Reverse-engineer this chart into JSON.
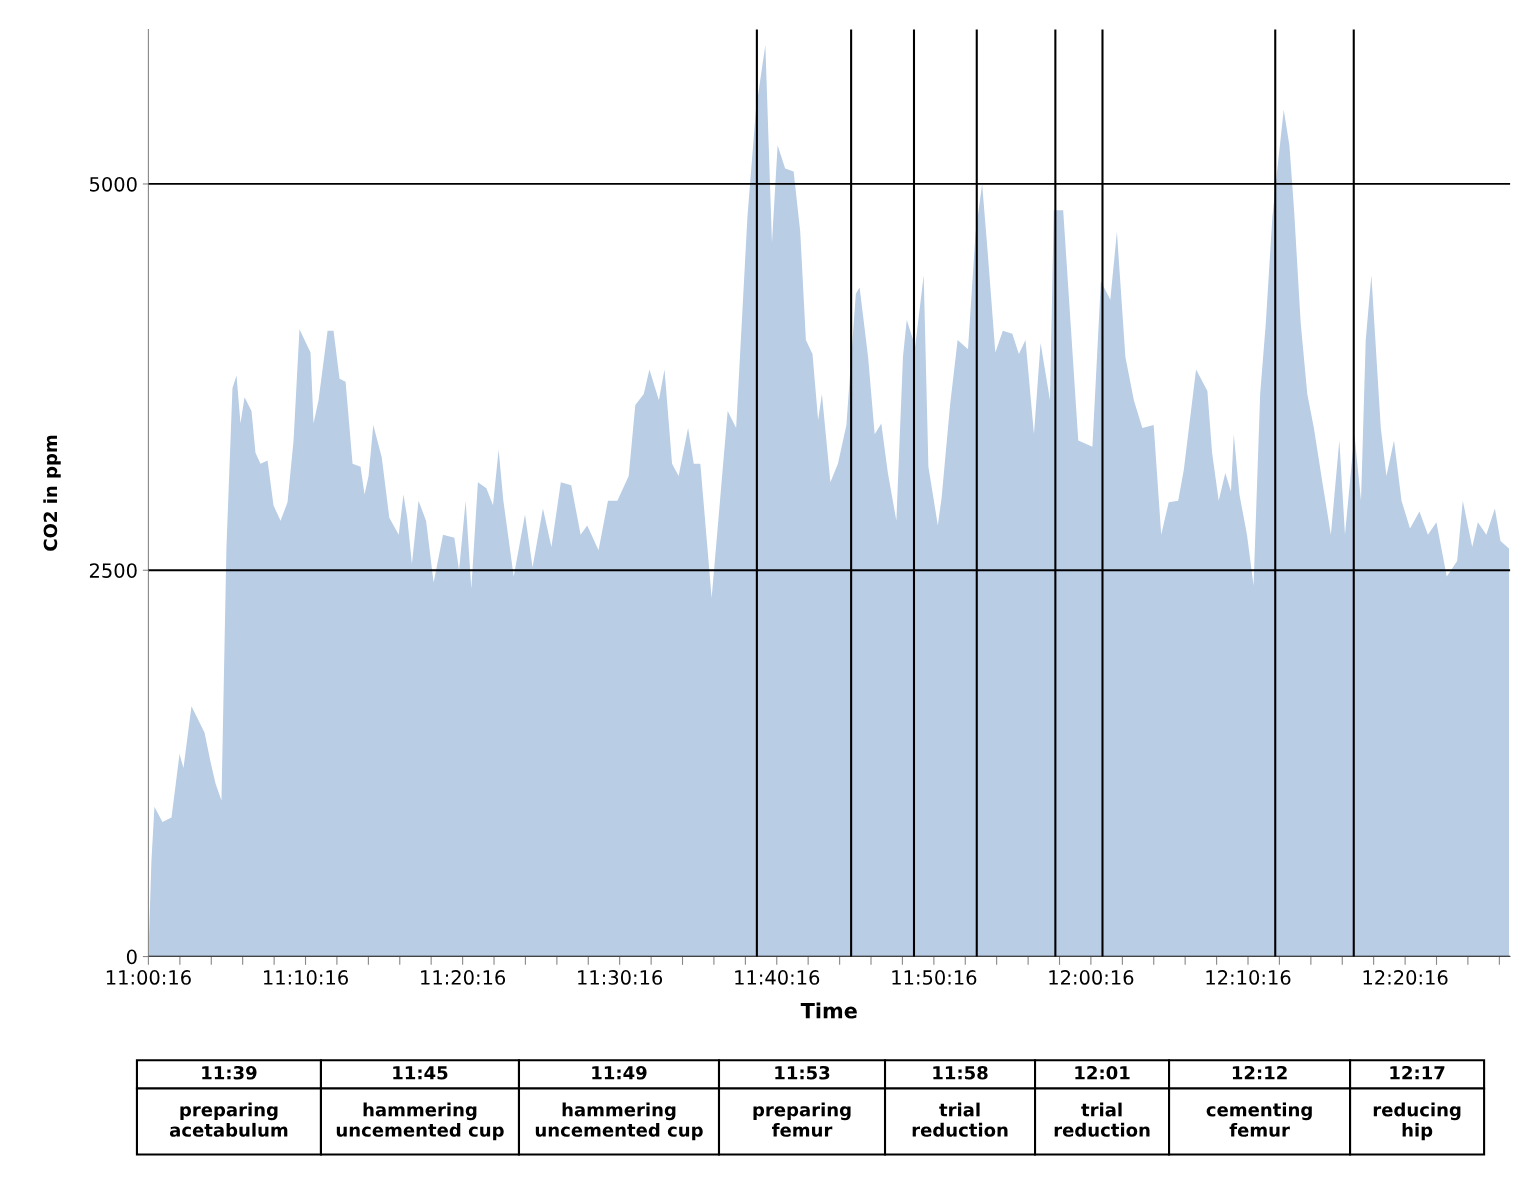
{
  "chart_data": {
    "type": "area",
    "xlabel": "Time",
    "ylabel": "CO2 in ppm",
    "x": [
      11.0044,
      11.0076,
      11.0108,
      11.0193,
      11.0289,
      11.0374,
      11.0416,
      11.0501,
      11.0639,
      11.0703,
      11.0756,
      11.0819,
      11.0872,
      11.0936,
      11.0979,
      11.1021,
      11.1064,
      11.1138,
      11.118,
      11.1233,
      11.1308,
      11.1371,
      11.1446,
      11.152,
      11.1584,
      11.1647,
      11.1764,
      11.1796,
      11.1849,
      11.1945,
      11.2008,
      11.2072,
      11.2136,
      11.221,
      11.2295,
      11.2337,
      11.238,
      11.243,
      11.252,
      11.26,
      11.27,
      11.275,
      11.279,
      11.284,
      11.291,
      11.299,
      11.307,
      11.317,
      11.329,
      11.334,
      11.341,
      11.347,
      11.354,
      11.363,
      11.37,
      11.376,
      11.381,
      11.392,
      11.404,
      11.412,
      11.423,
      11.432,
      11.442,
      11.453,
      11.463,
      11.47,
      11.482,
      11.492,
      11.502,
      11.514,
      11.521,
      11.53,
      11.536,
      11.546,
      11.552,
      11.56,
      11.567,
      11.577,
      11.583,
      11.59,
      11.602,
      11.612,
      11.619,
      11.628,
      11.633,
      11.64,
      11.649,
      11.659,
      11.666,
      11.672,
      11.68,
      11.689,
      11.696,
      11.702,
      11.709,
      11.715,
      11.719,
      11.728,
      11.736,
      11.745,
      11.755,
      11.759,
      11.768,
      11.775,
      11.782,
      11.789,
      11.798,
      11.805,
      11.809,
      11.818,
      11.827,
      11.832,
      11.842,
      11.846,
      11.855,
      11.863,
      11.874,
      11.882,
      11.889,
      11.895,
      11.903,
      11.911,
      11.921,
      11.928,
      11.935,
      11.944,
      11.951,
      11.961,
      11.965,
      11.975,
      11.991,
      12.006,
      12.015,
      12.025,
      12.032,
      12.041,
      12.05,
      12.059,
      12.071,
      12.079,
      12.087,
      12.097,
      12.103,
      12.112,
      12.116,
      12.128,
      12.133,
      12.14,
      12.147,
      12.153,
      12.156,
      12.162,
      12.17,
      12.177,
      12.184,
      12.19,
      12.197,
      12.203,
      12.209,
      12.215,
      12.22,
      12.227,
      12.234,
      12.241,
      12.25,
      12.259,
      12.268,
      12.274,
      12.284,
      12.291,
      12.296,
      12.302,
      12.312,
      12.318,
      12.326,
      12.334,
      12.343,
      12.353,
      12.362,
      12.371,
      12.382,
      12.393,
      12.399,
      12.409,
      12.415,
      12.424,
      12.433,
      12.439,
      12.448
    ],
    "series": [
      {
        "color": "#b9cde5",
        "values": [
          0,
          620,
          970,
          870,
          900,
          1310,
          1220,
          1620,
          1450,
          1260,
          1120,
          1010,
          2650,
          3680,
          3760,
          3450,
          3620,
          3530,
          3260,
          3190,
          3210,
          2920,
          2820,
          2940,
          3340,
          4060,
          3910,
          3450,
          3600,
          4050,
          4050,
          3740,
          3720,
          3190,
          3170,
          2990,
          3110,
          3440,
          3230,
          2840,
          2730,
          2990,
          2840,
          2540,
          2950,
          2820,
          2420,
          2730,
          2710,
          2500,
          2950,
          2380,
          3070,
          3030,
          2920,
          3280,
          2950,
          2460,
          2860,
          2520,
          2900,
          2650,
          3070,
          3050,
          2730,
          2790,
          2630,
          2950,
          2950,
          3110,
          3570,
          3640,
          3800,
          3600,
          3800,
          3190,
          3110,
          3420,
          3190,
          3190,
          2320,
          3030,
          3530,
          3420,
          3990,
          4790,
          5480,
          5900,
          4620,
          5250,
          5100,
          5080,
          4690,
          3990,
          3900,
          3470,
          3640,
          3070,
          3190,
          3440,
          4290,
          4330,
          3880,
          3380,
          3450,
          3130,
          2820,
          3880,
          4120,
          3950,
          4410,
          3170,
          2790,
          2970,
          3570,
          3990,
          3930,
          4680,
          5000,
          4550,
          3910,
          4050,
          4030,
          3900,
          3990,
          3380,
          3970,
          3600,
          4830,
          4830,
          3340,
          3300,
          4370,
          4250,
          4690,
          3880,
          3600,
          3420,
          3440,
          2730,
          2940,
          2950,
          3150,
          3600,
          3800,
          3660,
          3260,
          2950,
          3130,
          3010,
          3380,
          2990,
          2730,
          2400,
          3640,
          4100,
          4790,
          5140,
          5480,
          5250,
          4830,
          4100,
          3640,
          3420,
          3070,
          2730,
          3340,
          2730,
          3380,
          2950,
          3990,
          4410,
          3420,
          3110,
          3340,
          2950,
          2770,
          2880,
          2730,
          2810,
          2460,
          2560,
          2950,
          2650,
          2810,
          2730,
          2900,
          2690,
          2640
        ]
      }
    ],
    "xlim": [
      11.0044,
      12.4492
    ],
    "ylim": [
      0,
      6000
    ],
    "yticks": [
      0,
      2500,
      5000
    ],
    "xticks": [
      {
        "value": 11.0044,
        "label": "11:00:16"
      },
      {
        "value": 11.0378,
        "label": null
      },
      {
        "value": 11.0711,
        "label": null
      },
      {
        "value": 11.1044,
        "label": null
      },
      {
        "value": 11.1378,
        "label": null
      },
      {
        "value": 11.1711,
        "label": "11:10:16"
      },
      {
        "value": 11.2044,
        "label": null
      },
      {
        "value": 11.2378,
        "label": null
      },
      {
        "value": 11.2711,
        "label": null
      },
      {
        "value": 11.3044,
        "label": null
      },
      {
        "value": 11.3378,
        "label": "11:20:16"
      },
      {
        "value": 11.3711,
        "label": null
      },
      {
        "value": 11.4044,
        "label": null
      },
      {
        "value": 11.4378,
        "label": null
      },
      {
        "value": 11.4711,
        "label": null
      },
      {
        "value": 11.5044,
        "label": "11:30:16"
      },
      {
        "value": 11.5378,
        "label": null
      },
      {
        "value": 11.5711,
        "label": null
      },
      {
        "value": 11.6044,
        "label": null
      },
      {
        "value": 11.6378,
        "label": null
      },
      {
        "value": 11.6711,
        "label": "11:40:16"
      },
      {
        "value": 11.7044,
        "label": null
      },
      {
        "value": 11.7378,
        "label": null
      },
      {
        "value": 11.7711,
        "label": null
      },
      {
        "value": 11.8044,
        "label": null
      },
      {
        "value": 11.8378,
        "label": "11:50:16"
      },
      {
        "value": 11.8711,
        "label": null
      },
      {
        "value": 11.9044,
        "label": null
      },
      {
        "value": 11.9378,
        "label": null
      },
      {
        "value": 11.9711,
        "label": null
      },
      {
        "value": 12.0044,
        "label": "12:00:16"
      },
      {
        "value": 12.0378,
        "label": null
      },
      {
        "value": 12.0711,
        "label": null
      },
      {
        "value": 12.1044,
        "label": null
      },
      {
        "value": 12.1378,
        "label": null
      },
      {
        "value": 12.1711,
        "label": "12:10:16"
      },
      {
        "value": 12.2044,
        "label": null
      },
      {
        "value": 12.2378,
        "label": null
      },
      {
        "value": 12.2711,
        "label": null
      },
      {
        "value": 12.3044,
        "label": null
      },
      {
        "value": 12.3378,
        "label": "12:20:16"
      },
      {
        "value": 12.3711,
        "label": null
      },
      {
        "value": 12.4044,
        "label": null
      },
      {
        "value": 12.4378,
        "label": null
      }
    ],
    "grid": "y",
    "ref_lines": [
      {
        "axis": "x",
        "value": 11.65,
        "color": "#000000"
      },
      {
        "axis": "x",
        "value": 11.75,
        "color": "#000000"
      },
      {
        "axis": "x",
        "value": 11.8167,
        "color": "#000000"
      },
      {
        "axis": "x",
        "value": 11.8833,
        "color": "#000000"
      },
      {
        "axis": "x",
        "value": 11.9667,
        "color": "#000000"
      },
      {
        "axis": "x",
        "value": 12.0167,
        "color": "#000000"
      },
      {
        "axis": "x",
        "value": 12.2,
        "color": "#000000"
      },
      {
        "axis": "x",
        "value": 12.2833,
        "color": "#000000"
      }
    ],
    "annotations": [
      "11:39",
      "preparing acetabulum",
      "11:45",
      "hammering uncemented cup",
      "11:49",
      "hammering uncemented cup",
      "11:53",
      "preparing femur",
      "11:58",
      "trial reduction",
      "12:01",
      "trial reduction",
      "12:12",
      "cementing femur",
      "12:17",
      "reducing hip"
    ]
  }
}
